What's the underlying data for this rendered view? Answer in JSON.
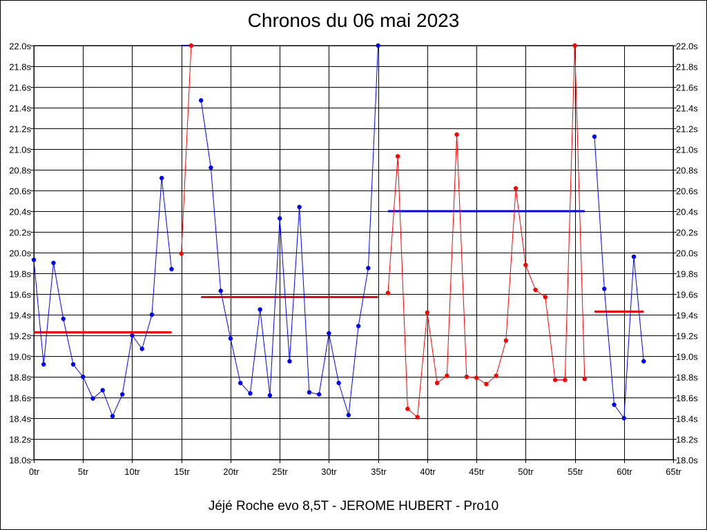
{
  "chart_data": {
    "type": "line",
    "title": "Chronos du 06 mai 2023",
    "subtitle": "Jéjé Roche evo 8,5T - JEROME HUBERT - Pro10",
    "xlim": [
      0,
      65
    ],
    "ylim": [
      18.0,
      22.0
    ],
    "x_ticks": [
      {
        "value": 0,
        "label": "0tr"
      },
      {
        "value": 5,
        "label": "5tr"
      },
      {
        "value": 10,
        "label": "10tr"
      },
      {
        "value": 15,
        "label": "15tr"
      },
      {
        "value": 20,
        "label": "20tr"
      },
      {
        "value": 25,
        "label": "25tr"
      },
      {
        "value": 30,
        "label": "30tr"
      },
      {
        "value": 35,
        "label": "35tr"
      },
      {
        "value": 40,
        "label": "40tr"
      },
      {
        "value": 45,
        "label": "45tr"
      },
      {
        "value": 50,
        "label": "50tr"
      },
      {
        "value": 55,
        "label": "55tr"
      },
      {
        "value": 60,
        "label": "60tr"
      },
      {
        "value": 65,
        "label": "65tr"
      }
    ],
    "y_ticks": [
      {
        "value": 18.0,
        "label": "18.0s"
      },
      {
        "value": 18.2,
        "label": "18.2s"
      },
      {
        "value": 18.4,
        "label": "18.4s"
      },
      {
        "value": 18.6,
        "label": "18.6s"
      },
      {
        "value": 18.8,
        "label": "18.8s"
      },
      {
        "value": 19.0,
        "label": "19.0s"
      },
      {
        "value": 19.2,
        "label": "19.2s"
      },
      {
        "value": 19.4,
        "label": "19.4s"
      },
      {
        "value": 19.6,
        "label": "19.6s"
      },
      {
        "value": 19.8,
        "label": "19.8s"
      },
      {
        "value": 20.0,
        "label": "20.0s"
      },
      {
        "value": 20.2,
        "label": "20.2s"
      },
      {
        "value": 20.4,
        "label": "20.4s"
      },
      {
        "value": 20.6,
        "label": "20.6s"
      },
      {
        "value": 20.8,
        "label": "20.8s"
      },
      {
        "value": 21.0,
        "label": "21.0s"
      },
      {
        "value": 21.2,
        "label": "21.2s"
      },
      {
        "value": 21.4,
        "label": "21.4s"
      },
      {
        "value": 21.6,
        "label": "21.6s"
      },
      {
        "value": 21.8,
        "label": "21.8s"
      },
      {
        "value": 22.0,
        "label": "22.0s"
      }
    ],
    "grid": true,
    "colors": {
      "blue": "#0000ff",
      "red": "#ff0000",
      "grid": "#000000"
    },
    "series": [
      {
        "color": "#0000ff",
        "x": [
          0,
          1,
          2,
          3,
          4,
          5,
          6,
          7,
          8,
          9,
          10,
          11,
          12,
          13,
          14
        ],
        "y": [
          19.93,
          18.92,
          19.9,
          19.36,
          18.92,
          18.8,
          18.59,
          18.67,
          18.42,
          18.63,
          19.2,
          19.07,
          19.4,
          20.72,
          19.84
        ]
      },
      {
        "color": "#ff0000",
        "x": [
          15,
          16
        ],
        "y": [
          19.99,
          22.0
        ]
      },
      {
        "color": "#0000ff",
        "x": [
          17,
          18,
          19,
          20,
          21,
          22,
          23,
          24,
          25,
          26,
          27,
          28,
          29,
          30,
          31,
          32,
          33,
          34,
          35
        ],
        "y": [
          21.47,
          20.82,
          19.63,
          19.17,
          18.74,
          18.64,
          19.45,
          18.62,
          20.33,
          18.95,
          20.44,
          18.65,
          18.63,
          19.22,
          18.74,
          18.43,
          19.29,
          19.85,
          22.0
        ]
      },
      {
        "color": "#ff0000",
        "x": [
          36,
          37,
          38,
          39,
          40,
          41,
          42,
          43,
          44,
          45,
          46,
          47,
          48,
          49,
          50,
          51,
          52,
          53,
          54,
          55,
          56
        ],
        "y": [
          19.61,
          20.93,
          18.49,
          18.41,
          19.42,
          18.74,
          18.81,
          21.14,
          18.8,
          18.79,
          18.73,
          18.81,
          19.15,
          20.62,
          19.88,
          19.64,
          19.57,
          18.77,
          18.77,
          22.0,
          18.78
        ]
      },
      {
        "color": "#0000ff",
        "x": [
          57,
          58,
          59,
          60,
          61,
          62
        ],
        "y": [
          21.12,
          19.65,
          18.53,
          18.4,
          19.96,
          18.95
        ]
      }
    ],
    "average_lines": [
      {
        "color": "#ff0000",
        "x_start": 0,
        "x_end": 14,
        "y": 19.23
      },
      {
        "color": "#ff0000",
        "x_start": 17,
        "x_end": 35,
        "y": 19.57
      },
      {
        "color": "#0000ff",
        "x_start": 36,
        "x_end": 56,
        "y": 20.4
      },
      {
        "color": "#ff0000",
        "x_start": 57,
        "x_end": 62,
        "y": 19.43
      }
    ],
    "capped_segments": [
      {
        "color": "#0000ff",
        "x_start": 15,
        "x_end": 16,
        "y": 22.0
      },
      {
        "color": "#8b0000",
        "x_start": 55,
        "x_end": 55,
        "y_start": 21.88,
        "y_end": 22.0
      }
    ]
  }
}
